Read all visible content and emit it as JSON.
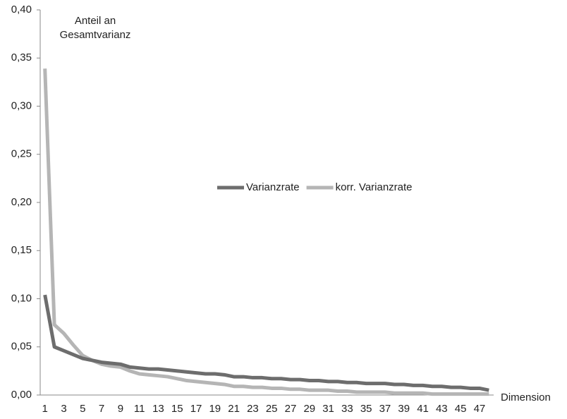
{
  "chart_data": {
    "type": "line",
    "ylabel": [
      "Anteil an",
      "Gesamtvarianz"
    ],
    "xlabel": "Dimension",
    "categories": [
      "1",
      null,
      "3",
      null,
      "5",
      null,
      "7",
      null,
      "9",
      null,
      "11",
      null,
      "13",
      null,
      "15",
      null,
      "17",
      null,
      "19",
      null,
      "21",
      null,
      "23",
      null,
      "25",
      null,
      "27",
      null,
      "29",
      null,
      "31",
      null,
      "33",
      null,
      "35",
      null,
      "37",
      null,
      "39",
      null,
      "41",
      null,
      "43",
      null,
      "45",
      null,
      "47",
      null
    ],
    "series": [
      {
        "name": "Varianzrate",
        "color": "#6d6d6d",
        "values": [
          0.104,
          0.05,
          0.046,
          0.042,
          0.038,
          0.036,
          0.034,
          0.033,
          0.032,
          0.029,
          0.028,
          0.027,
          0.027,
          0.026,
          0.025,
          0.024,
          0.023,
          0.022,
          0.022,
          0.021,
          0.019,
          0.019,
          0.018,
          0.018,
          0.017,
          0.017,
          0.016,
          0.016,
          0.015,
          0.015,
          0.014,
          0.014,
          0.013,
          0.013,
          0.012,
          0.012,
          0.012,
          0.011,
          0.011,
          0.01,
          0.01,
          0.009,
          0.009,
          0.008,
          0.008,
          0.007,
          0.007,
          0.005
        ]
      },
      {
        "name": "korr. Varianzrate",
        "color": "#b5b5b5",
        "values": [
          0.339,
          0.073,
          0.064,
          0.052,
          0.041,
          0.036,
          0.032,
          0.03,
          0.029,
          0.025,
          0.022,
          0.021,
          0.02,
          0.019,
          0.017,
          0.015,
          0.014,
          0.013,
          0.012,
          0.011,
          0.009,
          0.009,
          0.008,
          0.008,
          0.007,
          0.007,
          0.006,
          0.006,
          0.005,
          0.005,
          0.005,
          0.004,
          0.004,
          0.003,
          0.003,
          0.003,
          0.003,
          0.002,
          0.002,
          0.002,
          0.002,
          0.001,
          0.001,
          0.001,
          0.001,
          0.001,
          0.001,
          0.001
        ]
      }
    ],
    "ylim": [
      0,
      0.4
    ],
    "yticks": [
      {
        "value": 0,
        "label": "0,00"
      },
      {
        "value": 0.05,
        "label": "0,05"
      },
      {
        "value": 0.1,
        "label": "0,10"
      },
      {
        "value": 0.15,
        "label": "0,15"
      },
      {
        "value": 0.2,
        "label": "0,20"
      },
      {
        "value": 0.25,
        "label": "0,25"
      },
      {
        "value": 0.3,
        "label": "0,30"
      },
      {
        "value": 0.35,
        "label": "0,35"
      },
      {
        "value": 0.4,
        "label": "0,40"
      }
    ],
    "grid": false,
    "legend": "center"
  }
}
